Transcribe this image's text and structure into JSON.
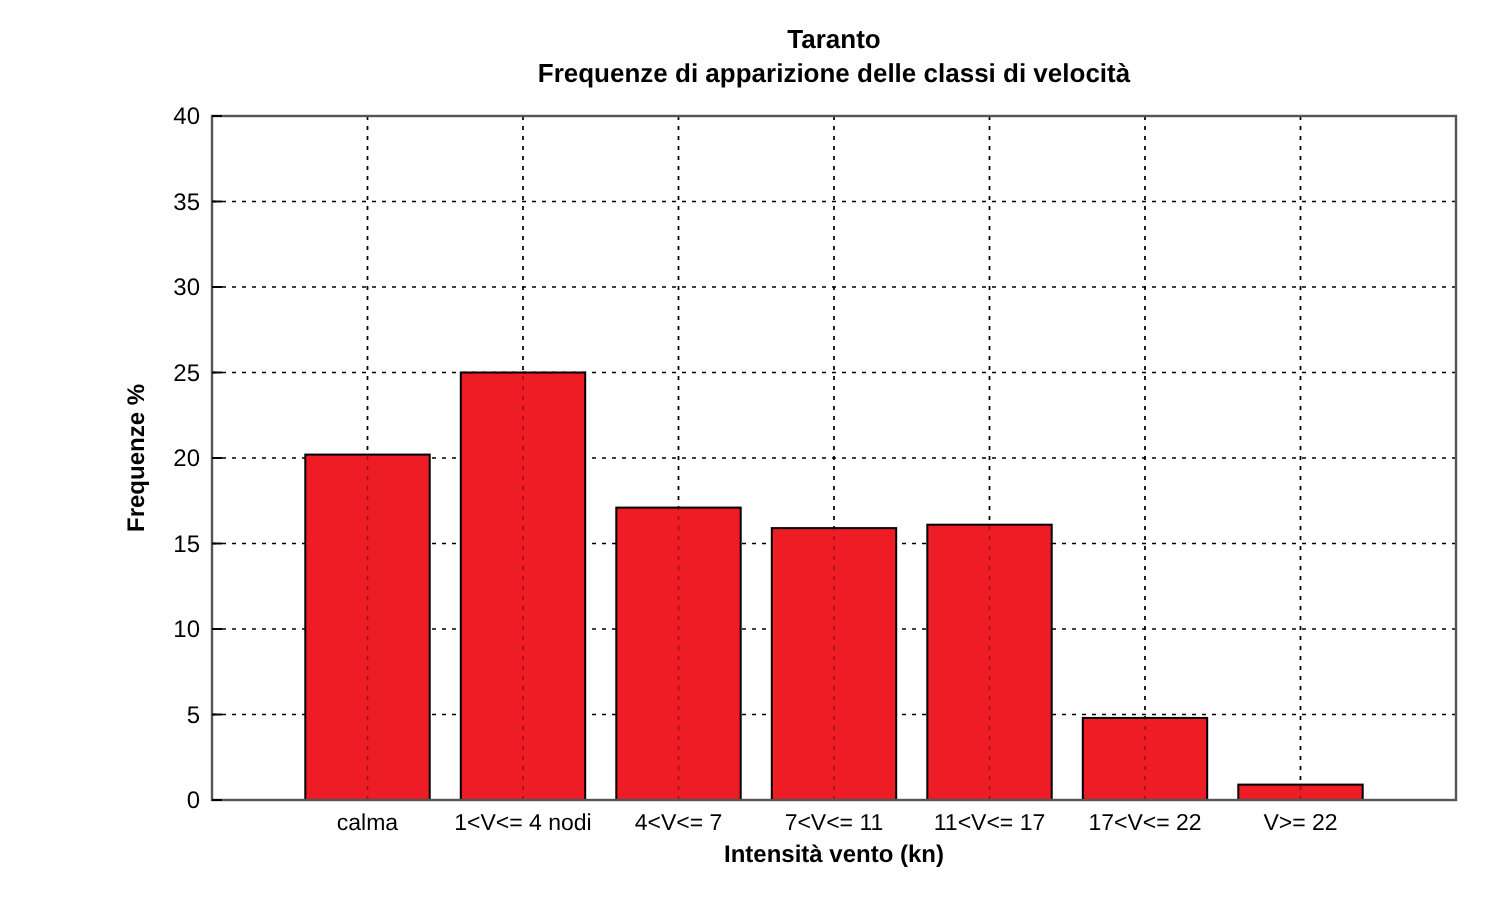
{
  "chart_data": {
    "type": "bar",
    "title": "Taranto",
    "subtitle": "Frequenze di apparizione delle classi di velocità",
    "xlabel": "Intensità vento (kn)",
    "ylabel": "Frequenze %",
    "categories": [
      "calma",
      "1<V<= 4 nodi",
      "4<V<= 7",
      "7<V<= 11",
      "11<V<= 17",
      "17<V<= 22",
      "V>= 22"
    ],
    "values": [
      20.2,
      25,
      17.1,
      15.9,
      16.1,
      4.8,
      0.9
    ],
    "color": "#ee1c24",
    "ylim": [
      0,
      40
    ],
    "yticks": [
      0,
      5,
      10,
      15,
      20,
      25,
      30,
      35,
      40
    ],
    "grid": true
  }
}
